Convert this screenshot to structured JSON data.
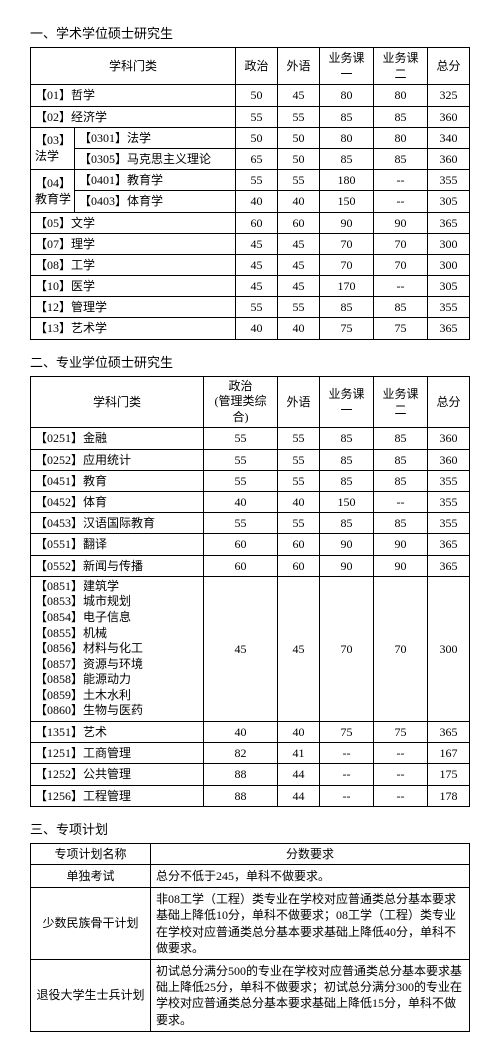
{
  "section1": {
    "title": "一、学术学位硕士研究生",
    "headers": [
      "学科门类",
      "政治",
      "外语",
      "业务课一",
      "业务课二",
      "总分"
    ],
    "rows": [
      {
        "cat": "【01】哲学",
        "c1": "50",
        "c2": "45",
        "c3": "80",
        "c4": "80",
        "c5": "325"
      },
      {
        "cat": "【02】经济学",
        "c1": "55",
        "c2": "55",
        "c3": "85",
        "c4": "85",
        "c5": "360"
      }
    ],
    "group1": {
      "label": "【03】法学",
      "sub": [
        {
          "cat": "【0301】法学",
          "c1": "50",
          "c2": "50",
          "c3": "80",
          "c4": "80",
          "c5": "340"
        },
        {
          "cat": "【0305】马克思主义理论",
          "c1": "65",
          "c2": "50",
          "c3": "85",
          "c4": "85",
          "c5": "360"
        }
      ]
    },
    "group2": {
      "label": "【04】教育学",
      "sub": [
        {
          "cat": "【0401】教育学",
          "c1": "55",
          "c2": "55",
          "c3": "180",
          "c4": "--",
          "c5": "355"
        },
        {
          "cat": "【0403】体育学",
          "c1": "40",
          "c2": "40",
          "c3": "150",
          "c4": "--",
          "c5": "305"
        }
      ]
    },
    "rest": [
      {
        "cat": "【05】文学",
        "c1": "60",
        "c2": "60",
        "c3": "90",
        "c4": "90",
        "c5": "365"
      },
      {
        "cat": "【07】理学",
        "c1": "45",
        "c2": "45",
        "c3": "70",
        "c4": "70",
        "c5": "300"
      },
      {
        "cat": "【08】工学",
        "c1": "45",
        "c2": "45",
        "c3": "70",
        "c4": "70",
        "c5": "300"
      },
      {
        "cat": "【10】医学",
        "c1": "45",
        "c2": "45",
        "c3": "170",
        "c4": "--",
        "c5": "305"
      },
      {
        "cat": "【12】管理学",
        "c1": "55",
        "c2": "55",
        "c3": "85",
        "c4": "85",
        "c5": "355"
      },
      {
        "cat": "【13】艺术学",
        "c1": "40",
        "c2": "40",
        "c3": "75",
        "c4": "75",
        "c5": "365"
      }
    ]
  },
  "section2": {
    "title": "二、专业学位硕士研究生",
    "headers": [
      "学科门类",
      "政治\n(管理类综合)",
      "外语",
      "业务课一",
      "业务课二",
      "总分"
    ],
    "rows": [
      {
        "cat": "【0251】金融",
        "c1": "55",
        "c2": "55",
        "c3": "85",
        "c4": "85",
        "c5": "360"
      },
      {
        "cat": "【0252】应用统计",
        "c1": "55",
        "c2": "55",
        "c3": "85",
        "c4": "85",
        "c5": "360"
      },
      {
        "cat": "【0451】教育",
        "c1": "55",
        "c2": "55",
        "c3": "85",
        "c4": "85",
        "c5": "355"
      },
      {
        "cat": "【0452】体育",
        "c1": "40",
        "c2": "40",
        "c3": "150",
        "c4": "--",
        "c5": "355"
      },
      {
        "cat": "【0453】汉语国际教育",
        "c1": "55",
        "c2": "55",
        "c3": "85",
        "c4": "85",
        "c5": "355"
      },
      {
        "cat": "【0551】翻译",
        "c1": "60",
        "c2": "60",
        "c3": "90",
        "c4": "90",
        "c5": "365"
      },
      {
        "cat": "【0552】新闻与传播",
        "c1": "60",
        "c2": "60",
        "c3": "90",
        "c4": "90",
        "c5": "365"
      }
    ],
    "bigGroup": {
      "lines": [
        "【0851】建筑学",
        "【0853】城市规划",
        "【0854】电子信息",
        "【0855】机械",
        "【0856】材料与化工",
        "【0857】资源与环境",
        "【0858】能源动力",
        "【0859】土木水利",
        "【0860】生物与医药"
      ],
      "c1": "45",
      "c2": "45",
      "c3": "70",
      "c4": "70",
      "c5": "300"
    },
    "rest2": [
      {
        "cat": "【1351】艺术",
        "c1": "40",
        "c2": "40",
        "c3": "75",
        "c4": "75",
        "c5": "365"
      },
      {
        "cat": "【1251】工商管理",
        "c1": "82",
        "c2": "41",
        "c3": "--",
        "c4": "--",
        "c5": "167"
      },
      {
        "cat": "【1252】公共管理",
        "c1": "88",
        "c2": "44",
        "c3": "--",
        "c4": "--",
        "c5": "175"
      },
      {
        "cat": "【1256】工程管理",
        "c1": "88",
        "c2": "44",
        "c3": "--",
        "c4": "--",
        "c5": "178"
      }
    ]
  },
  "section3": {
    "title": "三、专项计划",
    "headers": [
      "专项计划名称",
      "分数要求"
    ],
    "rows": [
      {
        "name": "单独考试",
        "req": "总分不低于245，单科不做要求。"
      },
      {
        "name": "少数民族骨干计划",
        "req": "非08工学（工程）类专业在学校对应普通类总分基本要求基础上降低10分，单科不做要求；08工学（工程）类专业在学校对应普通类总分基本要求基础上降低40分，单科不做要求。"
      },
      {
        "name": "退役大学生士兵计划",
        "req": "初试总分满分500的专业在学校对应普通类总分基本要求基础上降低25分，单科不做要求；初试总分满分300的专业在学校对应普通类总分基本要求基础上降低15分，单科不做要求。"
      }
    ]
  }
}
